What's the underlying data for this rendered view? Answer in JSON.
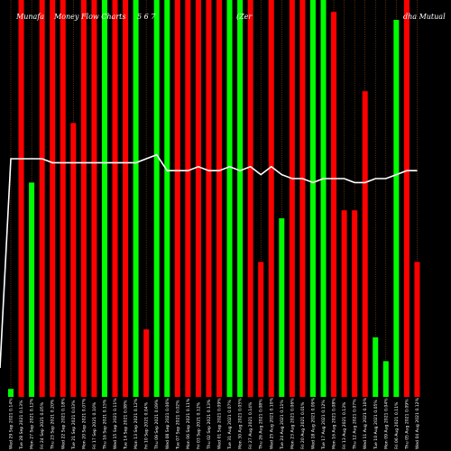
{
  "chart_data": {
    "type": "bar",
    "title": "Munafa Money Flow Charts Axis Zero Nippon Mutual Fund",
    "title_visible_segments": [
      "Munafa",
      "Money Flow Charts",
      "5 6 7",
      "(Zer",
      "dha Mutual"
    ],
    "xlabel": "",
    "ylabel": "",
    "ylim": [
      0,
      100
    ],
    "grid": "vertical-dashed",
    "colors": {
      "background": "#000000",
      "up": "#00ff00",
      "down": "#ff0000",
      "line": "#ffffff",
      "grid": "#8b4513",
      "axis_text": "#ffffff"
    },
    "categories": [
      "Wed 29 Sep",
      "Tue 28 Sep",
      "Mon 27 Sep",
      "Fri 24 Sep",
      "Thu 23 Sep",
      "Wed 22 Sep",
      "Tue 21 Sep",
      "Mon 20 Sep",
      "Fri 17 Sep",
      "Thu 16 Sep",
      "Wed 15 Sep",
      "Tue 14 Sep",
      "Mon 13 Sep",
      "Fri 10 Sep",
      "Thu 09 Sep",
      "Wed 08 Sep",
      "Tue 07 Sep",
      "Mon 06 Sep",
      "Fri 03 Sep",
      "Thu 02 Sep",
      "Wed 01 Sep",
      "Tue 31 Aug",
      "Mon 30 Aug",
      "Fri 27 Aug",
      "Thu 26 Aug",
      "Wed 25 Aug",
      "Tue 24 Aug",
      "Mon 23 Aug",
      "Fri 20 Aug",
      "Wed 18 Aug",
      "Tue 17 Aug",
      "Mon 16 Aug",
      "Fri 13 Aug",
      "Thu 12 Aug",
      "Wed 11 Aug",
      "Tue 10 Aug",
      "Mon 09 Aug",
      "Fri 06 Aug",
      "Thu 05 Aug",
      "Wed 04 Aug"
    ],
    "tick_labels": [
      "Wed 29 Sep 2021 0.14%",
      "Tue 28 Sep 2021 0.13%",
      "Mon 27 Sep 2021 0.12%",
      "Fri 24 Sep 2021 0.05%",
      "Thu 23 Sep 2021 0.20%",
      "Wed 22 Sep 2021 0.18%",
      "Tue 21 Sep 2021 0.03%",
      "Mon 20 Sep 2021 0.07%",
      "Fri 17 Sep 2021 0.10%",
      "Thu 16 Sep 2021 0.15%",
      "Wed 15 Sep 2021 0.11%",
      "Tue 14 Sep 2021 0.08%",
      "Mon 13 Sep 2021 0.12%",
      "Fri 10 Sep 2021 0.04%",
      "Thu 09 Sep 2021 0.09%",
      "Wed 08 Sep 2021 0.06%",
      "Tue 07 Sep 2021 0.02%",
      "Mon 06 Sep 2021 0.11%",
      "Fri 03 Sep 2021 0.12%",
      "Thu 02 Sep 2021 0.13%",
      "Wed 01 Sep 2021 0.09%",
      "Tue 31 Aug 2021 0.07%",
      "Mon 30 Aug 2021 0.05%",
      "Fri 27 Aug 2021 0.14%",
      "Thu 26 Aug 2021 0.08%",
      "Wed 25 Aug 2021 0.10%",
      "Tue 24 Aug 2021 0.11%",
      "Mon 23 Aug 2021 0.06%",
      "Fri 20 Aug 2021 0.01%",
      "Wed 18 Aug 2021 0.09%",
      "Tue 17 Aug 2021 0.12%",
      "Mon 16 Aug 2021 0.08%",
      "Fri 13 Aug 2021 0.13%",
      "Thu 12 Aug 2021 0.07%",
      "Wed 11 Aug 2021 0.10%",
      "Tue 10 Aug 2021 0.05%",
      "Mon 09 Aug 2021 0.04%",
      "Fri 06 Aug 2021 0.11%",
      "Thu 05 Aug 2021 0.09%",
      "Wed 04 Aug 2021 0.12%"
    ],
    "series": [
      {
        "role": "bars",
        "values": [
          2,
          100,
          54,
          100,
          100,
          100,
          69,
          100,
          100,
          100,
          100,
          100,
          100,
          17,
          100,
          100,
          100,
          100,
          100,
          100,
          100,
          100,
          100,
          100,
          34,
          100,
          45,
          100,
          100,
          100,
          100,
          97,
          47,
          47,
          77,
          15,
          9,
          95,
          100,
          34
        ],
        "directions": [
          "up",
          "down",
          "up",
          "down",
          "down",
          "down",
          "down",
          "down",
          "down",
          "up",
          "down",
          "down",
          "up",
          "down",
          "up",
          "up",
          "down",
          "down",
          "down",
          "down",
          "down",
          "up",
          "up",
          "down",
          "down",
          "down",
          "up",
          "down",
          "down",
          "up",
          "up",
          "down",
          "down",
          "down",
          "down",
          "up",
          "up",
          "up",
          "down",
          "down"
        ]
      },
      {
        "role": "line",
        "values": [
          60,
          60,
          60,
          60,
          59,
          59,
          59,
          59,
          59,
          59,
          59,
          59,
          59,
          60,
          61,
          57,
          57,
          57,
          58,
          57,
          57,
          58,
          57,
          58,
          56,
          58,
          56,
          55,
          55,
          54,
          55,
          55,
          55,
          54,
          54,
          55,
          55,
          56,
          57,
          57
        ]
      }
    ]
  }
}
